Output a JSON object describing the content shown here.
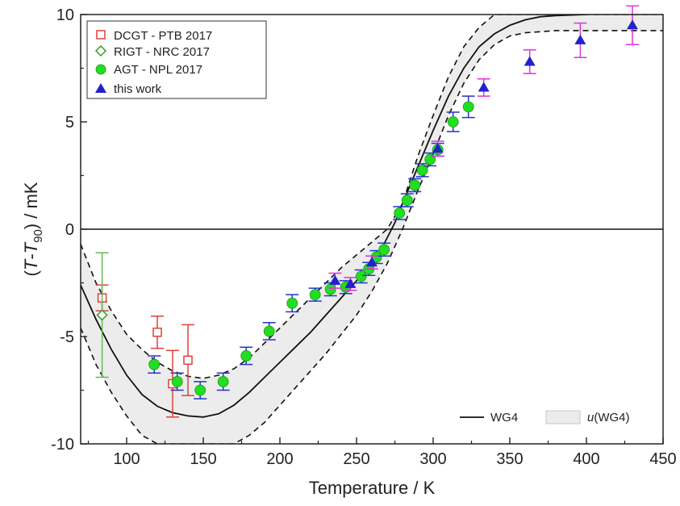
{
  "chart_data": {
    "type": "scatter",
    "xlabel": "Temperature / K",
    "ylabel": {
      "open": "(",
      "t": "T",
      "dash": "-",
      "t90": "T",
      "sub": "90",
      "close": ") / mK"
    },
    "xlim": [
      70,
      450
    ],
    "ylim": [
      -10,
      10
    ],
    "x_ticks": [
      100,
      150,
      200,
      250,
      300,
      350,
      400,
      450
    ],
    "y_ticks": [
      -10,
      -5,
      0,
      5,
      10
    ],
    "x_tick_labels": [
      "100",
      "150",
      "200",
      "250",
      "300",
      "350",
      "400",
      "450"
    ],
    "y_tick_labels": [
      "-10",
      "-5",
      "0",
      "5",
      "10"
    ],
    "legend_top": [
      {
        "label": "DCGT - PTB 2017",
        "marker": "open-square",
        "color": "#e0403a"
      },
      {
        "label": "RIGT - NRC 2017",
        "marker": "open-diamond",
        "color": "#3a9a2a"
      },
      {
        "label": "AGT - NPL 2017",
        "marker": "filled-circle",
        "color": "#22dd22"
      },
      {
        "label": "this work",
        "marker": "filled-triangle",
        "color": "#2222cc"
      }
    ],
    "legend_bottom": [
      {
        "label": "WG4",
        "style": "line"
      },
      {
        "label_prefix": "u",
        "label_suffix": "(WG4)",
        "style": "band"
      }
    ],
    "series": [
      {
        "name": "DCGT - PTB 2017",
        "marker": "open-square",
        "color": "#e0403a",
        "errcolor": "#e0403a",
        "points": [
          {
            "x": 84,
            "y": -3.2,
            "err": 0.6
          },
          {
            "x": 120,
            "y": -4.8,
            "err": 0.75
          },
          {
            "x": 130,
            "y": -7.2,
            "err": 1.55
          },
          {
            "x": 140,
            "y": -6.1,
            "err": 1.65
          }
        ]
      },
      {
        "name": "RIGT - NRC 2017",
        "marker": "open-diamond",
        "color": "#3a9a2a",
        "errcolor": "#66bb55",
        "points": [
          {
            "x": 84,
            "y": -4.0,
            "err": 2.9
          }
        ]
      },
      {
        "name": "AGT - NPL 2017",
        "marker": "filled-circle",
        "color": "#22dd22",
        "errcolor": "#2233cc",
        "points": [
          {
            "x": 118,
            "y": -6.3,
            "err": 0.4
          },
          {
            "x": 133,
            "y": -7.1,
            "err": 0.4
          },
          {
            "x": 148,
            "y": -7.5,
            "err": 0.4
          },
          {
            "x": 163,
            "y": -7.1,
            "err": 0.4
          },
          {
            "x": 178,
            "y": -5.9,
            "err": 0.4
          },
          {
            "x": 193,
            "y": -4.75,
            "err": 0.4
          },
          {
            "x": 208,
            "y": -3.45,
            "err": 0.4
          },
          {
            "x": 223,
            "y": -3.05,
            "err": 0.3
          },
          {
            "x": 233,
            "y": -2.8,
            "err": 0.3
          },
          {
            "x": 243,
            "y": -2.7,
            "err": 0.3
          },
          {
            "x": 253,
            "y": -2.2,
            "err": 0.3
          },
          {
            "x": 258,
            "y": -1.85,
            "err": 0.3
          },
          {
            "x": 263,
            "y": -1.3,
            "err": 0.3
          },
          {
            "x": 268,
            "y": -0.95,
            "err": 0.3
          },
          {
            "x": 278,
            "y": 0.75,
            "err": 0.3
          },
          {
            "x": 283,
            "y": 1.35,
            "err": 0.3
          },
          {
            "x": 288,
            "y": 2.05,
            "err": 0.3
          },
          {
            "x": 293,
            "y": 2.75,
            "err": 0.3
          },
          {
            "x": 298,
            "y": 3.25,
            "err": 0.3
          },
          {
            "x": 303,
            "y": 3.7,
            "err": 0.3
          },
          {
            "x": 313,
            "y": 5.0,
            "err": 0.45
          },
          {
            "x": 323,
            "y": 5.7,
            "err": 0.5
          }
        ]
      },
      {
        "name": "this work",
        "marker": "filled-triangle",
        "color": "#2222cc",
        "errcolor": "#dd33dd",
        "points": [
          {
            "x": 236,
            "y": -2.4,
            "err": 0.35
          },
          {
            "x": 246,
            "y": -2.55,
            "err": 0.3
          },
          {
            "x": 260,
            "y": -1.55,
            "err": 0.3
          },
          {
            "x": 303,
            "y": 3.75,
            "err": 0.35
          },
          {
            "x": 333,
            "y": 6.6,
            "err": 0.4
          },
          {
            "x": 363,
            "y": 7.8,
            "err": 0.55
          },
          {
            "x": 396,
            "y": 8.8,
            "err": 0.8
          },
          {
            "x": 430,
            "y": 9.5,
            "err": 0.9
          }
        ]
      }
    ],
    "curves": {
      "wg4": [
        [
          70,
          -2.6
        ],
        [
          80,
          -4.2
        ],
        [
          90,
          -5.6
        ],
        [
          100,
          -6.8
        ],
        [
          110,
          -7.7
        ],
        [
          120,
          -8.25
        ],
        [
          130,
          -8.55
        ],
        [
          140,
          -8.7
        ],
        [
          150,
          -8.75
        ],
        [
          160,
          -8.6
        ],
        [
          170,
          -8.2
        ],
        [
          180,
          -7.6
        ],
        [
          190,
          -6.9
        ],
        [
          200,
          -6.2
        ],
        [
          210,
          -5.5
        ],
        [
          220,
          -4.8
        ],
        [
          230,
          -4.0
        ],
        [
          240,
          -3.2
        ],
        [
          250,
          -2.4
        ],
        [
          260,
          -1.6
        ],
        [
          265,
          -1.1
        ],
        [
          270,
          -0.4
        ],
        [
          275,
          0.3
        ],
        [
          280,
          1.2
        ],
        [
          290,
          2.9
        ],
        [
          300,
          4.6
        ],
        [
          310,
          6.2
        ],
        [
          320,
          7.5
        ],
        [
          330,
          8.5
        ],
        [
          340,
          9.1
        ],
        [
          350,
          9.5
        ],
        [
          360,
          9.75
        ],
        [
          370,
          9.9
        ],
        [
          380,
          9.95
        ],
        [
          400,
          10.0
        ]
      ],
      "band_upper": [
        [
          70,
          -0.7
        ],
        [
          80,
          -2.5
        ],
        [
          90,
          -3.8
        ],
        [
          100,
          -4.9
        ],
        [
          110,
          -5.6
        ],
        [
          120,
          -6.2
        ],
        [
          130,
          -6.6
        ],
        [
          140,
          -6.85
        ],
        [
          150,
          -6.95
        ],
        [
          160,
          -6.8
        ],
        [
          170,
          -6.5
        ],
        [
          180,
          -6.0
        ],
        [
          190,
          -5.3
        ],
        [
          200,
          -4.6
        ],
        [
          210,
          -3.9
        ],
        [
          220,
          -3.2
        ],
        [
          230,
          -2.5
        ],
        [
          240,
          -1.8
        ],
        [
          250,
          -1.2
        ],
        [
          260,
          -0.6
        ],
        [
          265,
          -0.3
        ],
        [
          270,
          0.0
        ],
        [
          280,
          1.2
        ],
        [
          290,
          3.4
        ],
        [
          300,
          5.3
        ],
        [
          310,
          7.1
        ],
        [
          320,
          8.5
        ],
        [
          330,
          9.4
        ],
        [
          340,
          10.0
        ],
        [
          450,
          10.0
        ]
      ],
      "band_lower": [
        [
          70,
          -4.6
        ],
        [
          80,
          -6.3
        ],
        [
          90,
          -7.6
        ],
        [
          100,
          -8.7
        ],
        [
          110,
          -9.6
        ],
        [
          120,
          -10.0
        ],
        [
          130,
          -10.0
        ],
        [
          170,
          -10.0
        ],
        [
          180,
          -9.6
        ],
        [
          190,
          -9.0
        ],
        [
          200,
          -8.2
        ],
        [
          210,
          -7.4
        ],
        [
          220,
          -6.6
        ],
        [
          230,
          -5.8
        ],
        [
          240,
          -4.9
        ],
        [
          250,
          -4.0
        ],
        [
          260,
          -2.9
        ],
        [
          270,
          -1.6
        ],
        [
          280,
          0.0
        ],
        [
          290,
          1.8
        ],
        [
          300,
          3.5
        ],
        [
          310,
          5.3
        ],
        [
          320,
          6.8
        ],
        [
          330,
          7.9
        ],
        [
          340,
          8.6
        ],
        [
          350,
          9.0
        ],
        [
          360,
          9.15
        ],
        [
          380,
          9.25
        ],
        [
          450,
          9.25
        ]
      ]
    }
  }
}
